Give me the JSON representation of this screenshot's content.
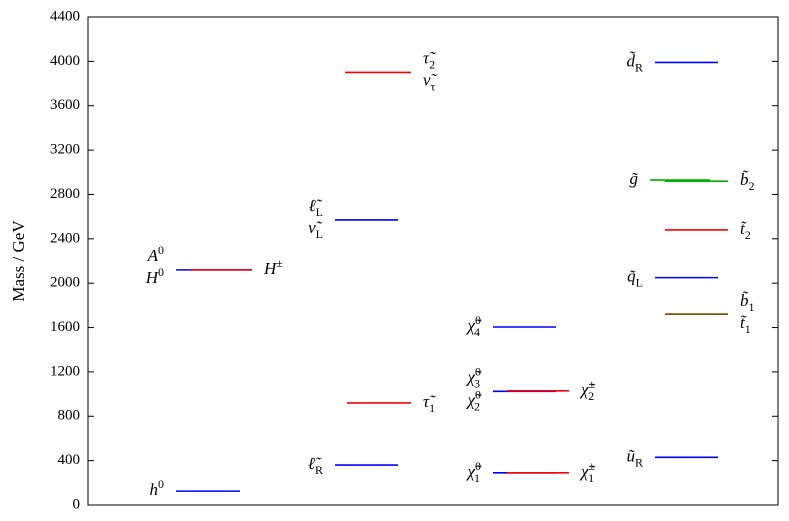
{
  "chart_data": {
    "type": "spectrum",
    "y_label": "Mass / GeV",
    "ylim": [
      0,
      4400
    ],
    "yticks": [
      0,
      400,
      800,
      1200,
      1600,
      2000,
      2400,
      2800,
      3200,
      3600,
      4000,
      4400
    ],
    "columns": [
      {
        "levels": [
          {
            "value": 125,
            "color": "#0000ff",
            "labels": [
              {
                "base": "h",
                "sup": "0"
              }
            ]
          },
          {
            "value": 2120,
            "color": "#0000ff",
            "labels": [
              {
                "base": "A",
                "sup": "0"
              },
              {
                "base": "H",
                "sup": "0"
              }
            ]
          },
          {
            "value": 2120,
            "color": "#ff0000",
            "labels": [
              {
                "base": "H",
                "sup": "±"
              }
            ]
          }
        ]
      },
      {
        "levels": [
          {
            "value": 3900,
            "color": "#ff0000",
            "labels": [
              {
                "base": "τ̃",
                "sub": "2"
              },
              {
                "base": "ν̃",
                "sub": "τ"
              }
            ]
          },
          {
            "value": 2570,
            "color": "#0000ff",
            "labels": [
              {
                "base": "ℓ̃",
                "sub": "L"
              },
              {
                "base": "ν̃",
                "sub": "L"
              }
            ]
          },
          {
            "value": 920,
            "color": "#ff0000",
            "labels": [
              {
                "base": "τ̃",
                "sub": "1"
              }
            ]
          },
          {
            "value": 360,
            "color": "#0000ff",
            "labels": [
              {
                "base": "ℓ̃",
                "sub": "R"
              }
            ]
          }
        ]
      },
      {
        "levels": [
          {
            "value": 1605,
            "color": "#0000ff",
            "labels": [
              {
                "base": "χ̃",
                "sub": "4",
                "sup": "0"
              }
            ]
          },
          {
            "value": 1025,
            "color": "#0000ff",
            "labels": [
              {
                "base": "χ̃",
                "sub": "3",
                "sup": "0"
              },
              {
                "base": "χ̃",
                "sub": "2",
                "sup": "0"
              }
            ]
          },
          {
            "value": 1030,
            "color": "#ff0000",
            "labels": [
              {
                "base": "χ̃",
                "sub": "2",
                "sup": "±"
              }
            ]
          },
          {
            "value": 290,
            "color": "#0000ff",
            "labels": [
              {
                "base": "χ̃",
                "sub": "1",
                "sup": "0"
              }
            ]
          },
          {
            "value": 290,
            "color": "#ff0000",
            "labels": [
              {
                "base": "χ̃",
                "sub": "1",
                "sup": "±"
              }
            ]
          }
        ]
      },
      {
        "levels": [
          {
            "value": 3990,
            "color": "#0000ff",
            "labels": [
              {
                "base": "d̃",
                "sub": "R"
              }
            ]
          },
          {
            "value": 2930,
            "color": "#00b000",
            "labels": [
              {
                "base": "g̃"
              }
            ]
          },
          {
            "value": 2920,
            "color": "#00b000",
            "labels": [
              {
                "base": "b̃",
                "sub": "2"
              }
            ]
          },
          {
            "value": 2480,
            "color": "#ff0000",
            "labels": [
              {
                "base": "t̃",
                "sub": "2"
              }
            ]
          },
          {
            "value": 2050,
            "color": "#0000ff",
            "labels": [
              {
                "base": "q̃",
                "sub": "L"
              }
            ]
          },
          {
            "value": 1720,
            "color": "#ff0000",
            "labels": [
              {
                "base": "t̃",
                "sub": "1"
              }
            ]
          },
          {
            "value": 1720,
            "color": "#6b5a00",
            "labels": [
              {
                "base": "b̃",
                "sub": "1"
              }
            ]
          },
          {
            "value": 430,
            "color": "#0000ff",
            "labels": [
              {
                "base": "ũ",
                "sub": "R"
              }
            ]
          }
        ]
      }
    ]
  }
}
